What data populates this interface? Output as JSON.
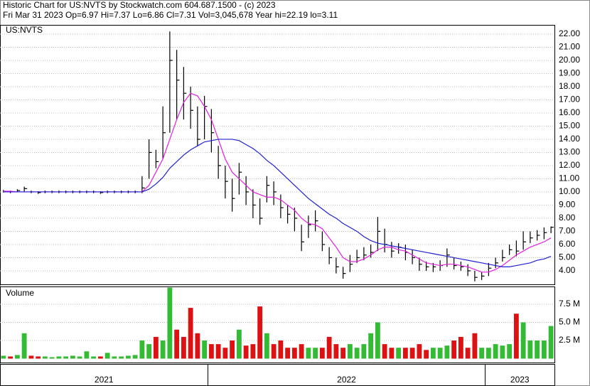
{
  "chart_data": {
    "type": "ohlc",
    "title": "Historic Chart for US:NVTS by Stockwatch.com 604.687.1500 - (c) 2023",
    "subtitle": "Fri Mar 31 2023  Op=6.97  Hi=7.37  Lo=6.86  Cl=7.31  Vol=3,045,678  Year hi=22.19  lo=3.11",
    "symbol": "US:NVTS",
    "bar_color": "#000000",
    "high": [
      10.15,
      10.1,
      10.2,
      10.4,
      10.1,
      10.05,
      10.1,
      10.1,
      10.1,
      10.1,
      10.1,
      10.1,
      10.1,
      10.1,
      10.05,
      10.1,
      10.1,
      10.1,
      10.1,
      10.1,
      11.2,
      14.0,
      13.2,
      16.5,
      22.2,
      20.8,
      19.5,
      18.0,
      16.5,
      17.3,
      16.3,
      13.5,
      12.0,
      11.0,
      12.2,
      11.2,
      10.2,
      9.5,
      11.2,
      10.8,
      9.8,
      9.0,
      8.8,
      7.5,
      8.2,
      8.6,
      7.0,
      5.8,
      5.0,
      4.3,
      5.2,
      5.6,
      5.8,
      6.0,
      8.1,
      7.2,
      6.2,
      6.1,
      6.0,
      5.6,
      5.0,
      4.7,
      4.6,
      4.8,
      5.7,
      5.0,
      4.7,
      4.5,
      4.0,
      3.9,
      4.6,
      5.0,
      5.6,
      6.0,
      6.3,
      7.0,
      7.0,
      7.1,
      7.3,
      7.37
    ],
    "low": [
      9.95,
      9.9,
      10.0,
      10.0,
      9.9,
      9.85,
      9.9,
      9.9,
      9.9,
      9.9,
      9.9,
      9.9,
      9.9,
      9.9,
      9.85,
      9.9,
      9.9,
      9.9,
      9.9,
      9.9,
      9.9,
      11.0,
      11.8,
      12.5,
      14.5,
      15.5,
      15.5,
      14.8,
      13.5,
      14.0,
      13.0,
      11.0,
      9.5,
      8.5,
      9.8,
      9.0,
      8.0,
      7.5,
      9.2,
      9.0,
      8.0,
      7.6,
      7.0,
      5.5,
      6.5,
      7.0,
      5.5,
      4.5,
      3.8,
      3.4,
      3.9,
      4.6,
      4.8,
      5.0,
      5.5,
      5.4,
      5.0,
      5.3,
      4.8,
      4.5,
      4.0,
      4.0,
      3.9,
      4.0,
      4.3,
      4.1,
      4.0,
      3.6,
      3.2,
      3.3,
      3.6,
      4.2,
      4.7,
      5.2,
      5.1,
      5.6,
      6.1,
      6.3,
      6.4,
      6.86
    ],
    "close": [
      10.05,
      10.0,
      10.1,
      10.25,
      10.0,
      9.95,
      10.0,
      10.0,
      10.0,
      10.0,
      10.0,
      10.0,
      10.0,
      10.0,
      9.95,
      10.0,
      10.0,
      10.0,
      10.0,
      10.0,
      10.3,
      13.0,
      12.3,
      14.5,
      20.0,
      18.5,
      17.5,
      16.2,
      14.0,
      16.5,
      14.5,
      12.0,
      10.8,
      9.5,
      11.5,
      10.0,
      9.0,
      8.0,
      10.5,
      10.0,
      8.8,
      8.3,
      8.0,
      6.2,
      7.5,
      7.8,
      6.0,
      5.0,
      4.3,
      3.8,
      4.5,
      5.0,
      5.2,
      5.4,
      7.0,
      6.0,
      5.5,
      5.8,
      5.4,
      5.0,
      4.5,
      4.3,
      4.3,
      4.4,
      5.2,
      4.4,
      4.3,
      4.0,
      3.5,
      3.6,
      4.2,
      4.6,
      5.0,
      5.6,
      5.5,
      6.2,
      6.5,
      6.7,
      6.9,
      7.31
    ],
    "moving_averages": [
      {
        "color": "#e020e0",
        "values": [
          10.05,
          10.05,
          10.0,
          10.0,
          10.0,
          10.0,
          10.0,
          10.0,
          10.0,
          10.0,
          10.0,
          10.0,
          10.0,
          10.0,
          10.0,
          10.0,
          10.0,
          10.0,
          10.0,
          10.0,
          10.0,
          10.5,
          11.5,
          12.5,
          14.0,
          15.5,
          16.8,
          17.5,
          17.3,
          16.5,
          15.5,
          14.0,
          12.5,
          11.5,
          11.0,
          10.5,
          10.0,
          9.8,
          9.6,
          9.6,
          9.4,
          9.0,
          8.6,
          8.0,
          7.6,
          7.5,
          7.2,
          6.5,
          5.8,
          5.0,
          4.7,
          4.7,
          4.9,
          5.2,
          5.6,
          5.8,
          5.8,
          5.6,
          5.5,
          5.2,
          4.9,
          4.6,
          4.5,
          4.4,
          4.5,
          4.5,
          4.4,
          4.3,
          4.1,
          3.9,
          3.9,
          4.1,
          4.4,
          4.8,
          5.2,
          5.5,
          5.8,
          6.0,
          6.2,
          6.5
        ]
      },
      {
        "color": "#2020d0",
        "values": [
          10.0,
          10.0,
          10.0,
          10.0,
          10.0,
          10.0,
          10.0,
          10.0,
          10.0,
          10.0,
          10.0,
          10.0,
          10.0,
          10.0,
          10.0,
          10.0,
          10.0,
          10.0,
          10.0,
          10.0,
          10.0,
          10.2,
          10.6,
          11.1,
          11.8,
          12.3,
          12.8,
          13.2,
          13.5,
          13.8,
          13.9,
          14.0,
          14.0,
          14.0,
          13.9,
          13.6,
          13.3,
          12.9,
          12.4,
          12.0,
          11.5,
          11.0,
          10.5,
          10.0,
          9.5,
          9.1,
          8.7,
          8.3,
          8.0,
          7.6,
          7.3,
          7.0,
          6.6,
          6.3,
          6.1,
          6.0,
          5.9,
          5.8,
          5.7,
          5.6,
          5.5,
          5.4,
          5.3,
          5.2,
          5.1,
          5.0,
          4.9,
          4.8,
          4.7,
          4.6,
          4.5,
          4.4,
          4.3,
          4.3,
          4.4,
          4.5,
          4.6,
          4.8,
          4.9,
          5.1
        ]
      }
    ],
    "ylim": [
      2.97,
      22.7
    ],
    "yticks": [
      {
        "value": 4,
        "label": "4.00"
      },
      {
        "value": 5,
        "label": "5.00"
      },
      {
        "value": 6,
        "label": "6.00"
      },
      {
        "value": 7,
        "label": "7.00"
      },
      {
        "value": 8,
        "label": "8.00"
      },
      {
        "value": 9,
        "label": "9.00"
      },
      {
        "value": 10,
        "label": "10.00"
      },
      {
        "value": 11,
        "label": "11.00"
      },
      {
        "value": 12,
        "label": "12.00"
      },
      {
        "value": 13,
        "label": "13.00"
      },
      {
        "value": 14,
        "label": "14.00"
      },
      {
        "value": 15,
        "label": "15.00"
      },
      {
        "value": 16,
        "label": "16.00"
      },
      {
        "value": 17,
        "label": "17.00"
      },
      {
        "value": 18,
        "label": "18.00"
      },
      {
        "value": 19,
        "label": "19.00"
      },
      {
        "value": 20,
        "label": "20.00"
      },
      {
        "value": 21,
        "label": "21.00"
      },
      {
        "value": 22,
        "label": "22.00"
      }
    ],
    "grid": true,
    "volume": {
      "label": "Volume",
      "up_color": "#33bb33",
      "down_color": "#dd1111",
      "values": [
        0.4,
        0.3,
        0.5,
        3.5,
        0.4,
        0.3,
        0.3,
        0.2,
        0.3,
        0.3,
        0.4,
        0.3,
        1.0,
        0.3,
        0.3,
        0.8,
        0.3,
        0.3,
        0.4,
        0.5,
        2.5,
        2.0,
        3.0,
        2.5,
        9.8,
        4.0,
        3.0,
        7.0,
        3.5,
        2.5,
        2.0,
        2.0,
        1.5,
        2.5,
        4.0,
        1.8,
        2.0,
        7.2,
        3.5,
        2.0,
        2.5,
        1.5,
        1.5,
        2.0,
        1.5,
        1.5,
        1.5,
        3.0,
        2.0,
        1.5,
        2.0,
        1.5,
        2.0,
        3.5,
        5.0,
        2.0,
        1.5,
        1.5,
        1.5,
        1.5,
        2.0,
        1.2,
        1.5,
        1.5,
        1.8,
        2.5,
        3.0,
        1.5,
        3.5,
        1.5,
        1.5,
        2.0,
        1.8,
        2.0,
        6.2,
        5.0,
        2.5,
        2.5,
        2.5,
        4.5
      ],
      "ylim": [
        0,
        9.95
      ],
      "yticks": [
        {
          "value": 2.5,
          "label": "2.5 M"
        },
        {
          "value": 5,
          "label": "5.0 M"
        },
        {
          "value": 7.5,
          "label": "7.5 M"
        }
      ]
    },
    "year_labels": [
      "2021",
      "2022",
      "2023"
    ],
    "year_starts": [
      0,
      30,
      70
    ]
  }
}
